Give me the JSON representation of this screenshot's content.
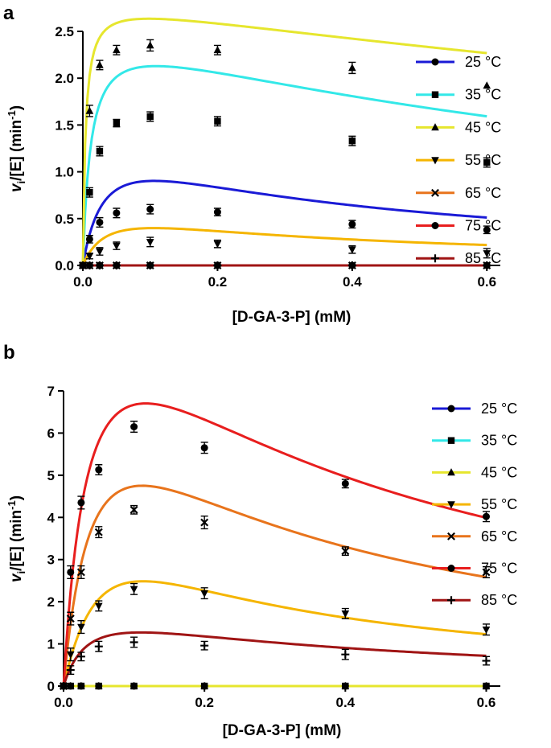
{
  "chart_data": [
    {
      "panel": "a",
      "type": "scatter",
      "xlabel": "[D-GA-3-P] (mM)",
      "ylabel": {
        "v": "v",
        "sub": "i",
        "rest": "/[E] (min",
        "sup": "-1",
        "close": ")"
      },
      "xlim": [
        0,
        0.62
      ],
      "ylim": [
        0,
        2.5
      ],
      "xticks": [
        0.0,
        0.2,
        0.4,
        0.6
      ],
      "xtick_labels": [
        "0.0",
        "0.2",
        "0.4",
        "0.6"
      ],
      "yticks": [
        0.0,
        0.5,
        1.0,
        1.5,
        2.0,
        2.5
      ],
      "ytick_labels": [
        "0.0",
        "0.5",
        "1.0",
        "1.5",
        "2.0",
        "2.5"
      ],
      "legend_position": "right",
      "x": [
        0,
        0.01,
        0.025,
        0.05,
        0.1,
        0.2,
        0.4,
        0.6
      ],
      "series": [
        {
          "name": "25 °C",
          "color": "#1a1ad6",
          "marker": "circle",
          "values": [
            0,
            0.28,
            0.46,
            0.56,
            0.6,
            0.57,
            0.44,
            0.38
          ],
          "errors": [
            0,
            0.04,
            0.05,
            0.05,
            0.05,
            0.04,
            0.04,
            0.04
          ],
          "fit": {
            "vmax": 1.5,
            "km": 0.035,
            "ki": 0.32
          }
        },
        {
          "name": "35 °C",
          "color": "#33e8e8",
          "marker": "square",
          "values": [
            0,
            0.78,
            1.22,
            1.52,
            1.59,
            1.54,
            1.33,
            1.1
          ],
          "errors": [
            0,
            0.05,
            0.05,
            0.04,
            0.05,
            0.05,
            0.05,
            0.05
          ],
          "fit": {
            "vmax": 2.6,
            "km": 0.012,
            "ki": 0.98
          }
        },
        {
          "name": "45 °C",
          "color": "#e6e62e",
          "marker": "triangle-up",
          "values": [
            0,
            1.65,
            2.14,
            2.3,
            2.35,
            2.3,
            2.11,
            1.92
          ],
          "errors": [
            0,
            0.06,
            0.05,
            0.05,
            0.06,
            0.05,
            0.06,
            0
          ],
          "fit": {
            "vmax": 2.85,
            "km": 0.004,
            "ki": 2.4
          }
        },
        {
          "name": "55 °C",
          "color": "#f5b500",
          "marker": "triangle-down",
          "values": [
            0,
            0.1,
            0.15,
            0.21,
            0.25,
            0.23,
            0.17,
            0.13
          ],
          "errors": [
            0,
            0.03,
            0.04,
            0.04,
            0.05,
            0.04,
            0.04,
            0.05
          ],
          "fit": {
            "vmax": 0.7,
            "km": 0.04,
            "ki": 0.28
          }
        },
        {
          "name": "65 °C",
          "color": "#e8741c",
          "marker": "x",
          "values": [
            0,
            0,
            0,
            0,
            0,
            0,
            0,
            0
          ],
          "errors": [
            0,
            0,
            0,
            0,
            0,
            0,
            0,
            0
          ],
          "fit": {
            "vmax": 0,
            "km": 0.05,
            "ki": 0.3
          }
        },
        {
          "name": "75 °C",
          "color": "#e81e1e",
          "marker": "circle",
          "values": [
            0,
            0,
            0,
            0,
            0,
            0,
            0,
            0
          ],
          "errors": [
            0,
            0,
            0,
            0,
            0,
            0,
            0,
            0
          ],
          "fit": {
            "vmax": 0,
            "km": 0.05,
            "ki": 0.3
          }
        },
        {
          "name": "85 °C",
          "color": "#a01414",
          "marker": "plus",
          "values": [
            0,
            0,
            0,
            0,
            0,
            0,
            0,
            0
          ],
          "errors": [
            0,
            0,
            0,
            0,
            0,
            0,
            0,
            0
          ],
          "fit": {
            "vmax": 0,
            "km": 0.05,
            "ki": 0.3
          }
        }
      ]
    },
    {
      "panel": "b",
      "type": "scatter",
      "xlabel": "[D-GA-3-P] (mM)",
      "ylabel": {
        "v": "v",
        "sub": "i",
        "rest": "/[E] (min",
        "sup": "-1",
        "close": ")"
      },
      "xlim": [
        0,
        0.62
      ],
      "ylim": [
        0,
        7
      ],
      "xticks": [
        0.0,
        0.2,
        0.4,
        0.6
      ],
      "xtick_labels": [
        "0.0",
        "0.2",
        "0.4",
        "0.6"
      ],
      "yticks": [
        0,
        1,
        2,
        3,
        4,
        5,
        6,
        7
      ],
      "ytick_labels": [
        "0",
        "1",
        "2",
        "3",
        "4",
        "5",
        "6",
        "7"
      ],
      "legend_position": "right",
      "x": [
        0,
        0.01,
        0.025,
        0.05,
        0.1,
        0.2,
        0.4,
        0.6
      ],
      "series": [
        {
          "name": "25 °C",
          "color": "#1a1ad6",
          "marker": "circle",
          "values": [
            0,
            0,
            0,
            0,
            0,
            0,
            0,
            0
          ],
          "errors": [
            0,
            0,
            0,
            0,
            0,
            0,
            0,
            0
          ],
          "fit": {
            "vmax": 0,
            "km": 0.05,
            "ki": 0.3
          }
        },
        {
          "name": "35 °C",
          "color": "#33e8e8",
          "marker": "square",
          "values": [
            0,
            0,
            0,
            0,
            0,
            0,
            0,
            0
          ],
          "errors": [
            0,
            0,
            0,
            0,
            0,
            0,
            0,
            0
          ],
          "fit": {
            "vmax": 0,
            "km": 0.05,
            "ki": 0.3
          }
        },
        {
          "name": "45 °C",
          "color": "#e6e62e",
          "marker": "triangle-up",
          "values": [
            0,
            0,
            0,
            0,
            0,
            0,
            0,
            0
          ],
          "errors": [
            0,
            0,
            0,
            0,
            0,
            0,
            0,
            0
          ],
          "fit": {
            "vmax": 0,
            "km": 0.05,
            "ki": 0.3
          }
        },
        {
          "name": "55 °C",
          "color": "#f5b500",
          "marker": "triangle-down",
          "values": [
            0,
            0.75,
            1.4,
            1.9,
            2.3,
            2.2,
            1.72,
            1.34
          ],
          "errors": [
            0,
            0.15,
            0.15,
            0.12,
            0.13,
            0.13,
            0.12,
            0.13
          ],
          "fit": {
            "vmax": 6.0,
            "km": 0.08,
            "ki": 0.16
          }
        },
        {
          "name": "65 °C",
          "color": "#e8741c",
          "marker": "x",
          "values": [
            0,
            1.6,
            2.7,
            3.65,
            4.18,
            3.88,
            3.2,
            2.7
          ],
          "errors": [
            0,
            0.15,
            0.15,
            0.13,
            0.1,
            0.15,
            0.1,
            0.13
          ],
          "fit": {
            "vmax": 9.0,
            "km": 0.05,
            "ki": 0.25
          }
        },
        {
          "name": "75 °C",
          "color": "#e81e1e",
          "marker": "circle",
          "values": [
            0,
            2.7,
            4.35,
            5.13,
            6.15,
            5.65,
            4.8,
            4.02
          ],
          "errors": [
            0,
            0.15,
            0.15,
            0.12,
            0.13,
            0.13,
            0.1,
            0.12
          ],
          "fit": {
            "vmax": 11.3,
            "km": 0.04,
            "ki": 0.34
          }
        },
        {
          "name": "85 °C",
          "color": "#a01414",
          "marker": "plus",
          "values": [
            0,
            0.38,
            0.7,
            0.94,
            1.04,
            0.96,
            0.75,
            0.6
          ],
          "errors": [
            0,
            0.1,
            0.1,
            0.12,
            0.12,
            0.1,
            0.12,
            0.1
          ],
          "fit": {
            "vmax": 2.2,
            "km": 0.04,
            "ki": 0.3
          }
        }
      ]
    }
  ]
}
